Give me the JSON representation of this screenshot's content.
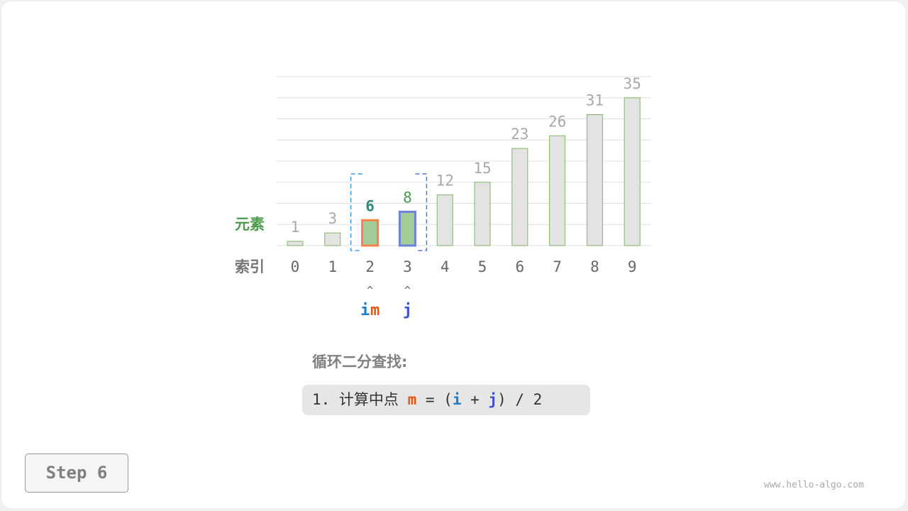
{
  "chart_data": {
    "type": "bar",
    "categories": [
      "0",
      "1",
      "2",
      "3",
      "4",
      "5",
      "6",
      "7",
      "8",
      "9"
    ],
    "values": [
      1,
      3,
      6,
      8,
      12,
      15,
      23,
      26,
      31,
      35
    ],
    "ylim": [
      0,
      40
    ],
    "grid": true,
    "row_labels": {
      "element": "元素",
      "index": "索引"
    },
    "highlight": {
      "i": 2,
      "m": 2,
      "j": 3
    },
    "pointers": {
      "i": "i",
      "m": "m",
      "j": "j"
    }
  },
  "colors": {
    "bar": "#e3e3e3",
    "bar_border": "#82b366",
    "active_fill": "#a3cc97",
    "m_border": "#f5824b",
    "j_border": "#6c81d9",
    "i_color": "#1a7ec9",
    "m_color": "#e8560c",
    "j_color": "#3a52d1",
    "label_green": "#4c9c4c",
    "value_grey": "#a8a8a8"
  },
  "panel": {
    "title": "循环二分查找:",
    "step_prefix": "1. 计算中点 ",
    "m": "m",
    "eq": " = (",
    "i": "i",
    "plus": " + ",
    "j": "j",
    "suffix": ") / 2"
  },
  "step_button": "Step 6",
  "watermark": "www.hello-algo.com"
}
